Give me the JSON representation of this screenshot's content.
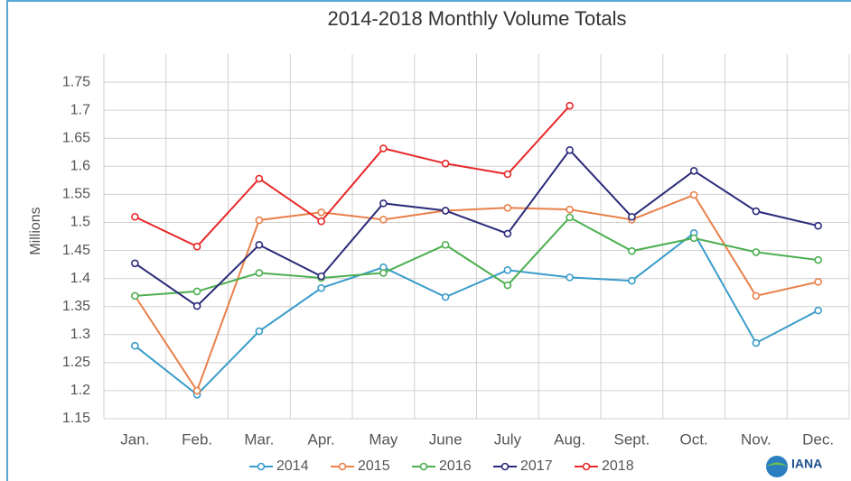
{
  "chart_data": {
    "type": "line",
    "title": "2014-2018 Monthly Volume Totals",
    "y_label": "Millions",
    "categories": [
      "Jan.",
      "Feb.",
      "Mar.",
      "Apr.",
      "May",
      "June",
      "July",
      "Aug.",
      "Sept.",
      "Oct.",
      "Nov.",
      "Dec."
    ],
    "series": [
      {
        "name": "2014",
        "color": "#3a9cc9",
        "values": [
          1.28,
          1.193,
          1.306,
          1.383,
          1.42,
          1.367,
          1.415,
          1.402,
          1.396,
          1.481,
          1.285,
          1.343
        ]
      },
      {
        "name": "2015",
        "color": "#e8804a",
        "values": [
          1.369,
          1.2,
          1.504,
          1.518,
          1.505,
          1.521,
          1.526,
          1.523,
          1.505,
          1.549,
          1.369,
          1.394
        ]
      },
      {
        "name": "2016",
        "color": "#4caf50",
        "values": [
          1.369,
          1.377,
          1.41,
          1.401,
          1.41,
          1.46,
          1.388,
          1.509,
          1.449,
          1.472,
          1.447,
          1.433
        ]
      },
      {
        "name": "2017",
        "color": "#2a2a7a",
        "values": [
          1.427,
          1.351,
          1.46,
          1.404,
          1.534,
          1.521,
          1.48,
          1.629,
          1.51,
          1.592,
          1.52,
          1.494
        ]
      },
      {
        "name": "2018",
        "color": "#e8282a",
        "values": [
          1.51,
          1.457,
          1.578,
          1.502,
          1.632,
          1.605,
          1.586,
          1.708,
          null,
          null,
          null,
          null
        ]
      }
    ],
    "ylim": [
      1.15,
      1.8
    ],
    "yticks": [
      1.15,
      1.2,
      1.25,
      1.3,
      1.35,
      1.4,
      1.45,
      1.5,
      1.55,
      1.6,
      1.65,
      1.7,
      1.75
    ],
    "grid": true,
    "legend": "bottom",
    "logo": "IANA"
  }
}
